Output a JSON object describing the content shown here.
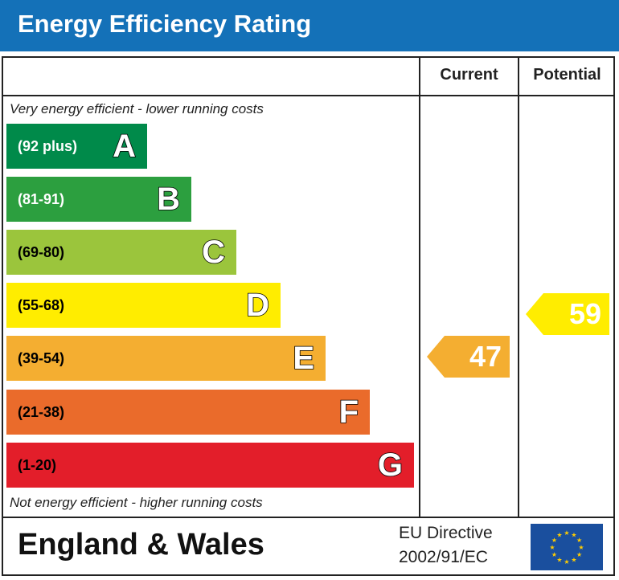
{
  "header": {
    "title": "Energy Efficiency Rating"
  },
  "columns": {
    "current": "Current",
    "potential": "Potential"
  },
  "notes": {
    "top": "Very energy efficient - lower running costs",
    "bottom": "Not energy efficient - higher running costs"
  },
  "bands": [
    {
      "letter": "A",
      "range": "(92 plus)",
      "color": "#008a4a"
    },
    {
      "letter": "B",
      "range": "(81-91)",
      "color": "#2c9f3f"
    },
    {
      "letter": "C",
      "range": "(69-80)",
      "color": "#9bc53c"
    },
    {
      "letter": "D",
      "range": "(55-68)",
      "color": "#ffed00"
    },
    {
      "letter": "E",
      "range": "(39-54)",
      "color": "#f4ae31"
    },
    {
      "letter": "F",
      "range": "(21-38)",
      "color": "#ea6b2b"
    },
    {
      "letter": "G",
      "range": "(1-20)",
      "color": "#e31e2a"
    }
  ],
  "ratings": {
    "current": {
      "value": "47",
      "color": "#f4ae31"
    },
    "potential": {
      "value": "59",
      "color": "#ffed00"
    }
  },
  "footer": {
    "country": "England & Wales",
    "directive_line1": "EU Directive",
    "directive_line2": "2002/91/EC"
  }
}
